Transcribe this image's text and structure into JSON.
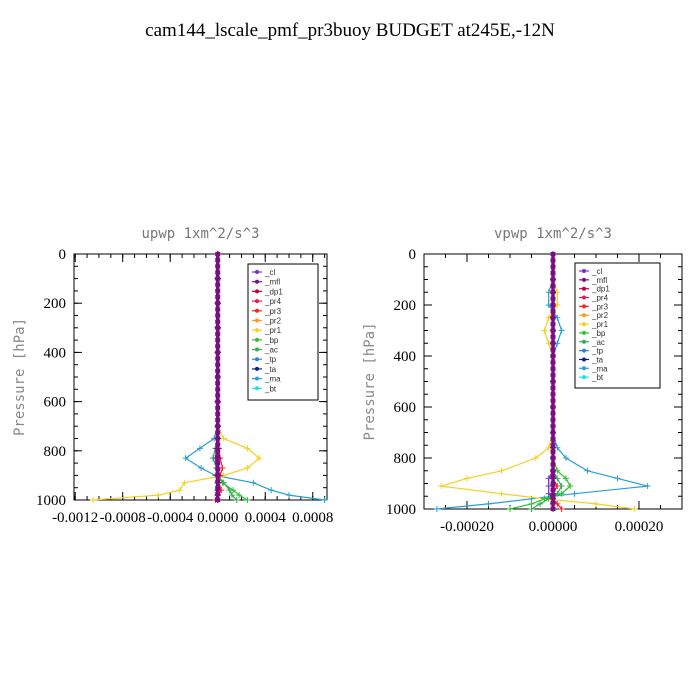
{
  "title": "cam144_lscale_pmf_pr3buoy  BUDGET at245E,-12N",
  "colors": {
    "_cl": "#7a2fd0",
    "_mfl": "#7a1080",
    "_dp1": "#c00040",
    "_pr4": "#e0204a",
    "_pr3": "#ff2020",
    "_pr2": "#ff9a20",
    "_pr1": "#f5d020",
    "_bp": "#30c030",
    "_ac": "#30b050",
    "_tp": "#3080e0",
    "_ta": "#102080",
    "_ma": "#2aa0d0",
    "_bt": "#20e0e0"
  },
  "chart_data": [
    {
      "type": "line",
      "title": "upwp  1xm^2/s^3",
      "ylabel": "Pressure [hPa]",
      "xlim": [
        -0.00121,
        0.00092
      ],
      "ylim": [
        1000,
        0
      ],
      "xticks": [
        -0.0012,
        -0.0008,
        -0.0004,
        0.0,
        0.0004,
        0.0008
      ],
      "xtick_labels": [
        "-0.0012",
        "-0.0008",
        "-0.0004",
        "0.0000",
        "0.0004",
        "0.0008"
      ],
      "yticks": [
        0,
        200,
        400,
        600,
        800,
        1000
      ],
      "ytick_labels": [
        "0",
        "200",
        "400",
        "600",
        "800",
        "1000"
      ],
      "legend": [
        "_cl",
        "_mfl",
        "_dp1",
        "_pr4",
        "_pr3",
        "_pr2",
        "_pr1",
        "_bp",
        "_ac",
        "_tp",
        "_ta",
        "_ma",
        "_bt"
      ],
      "legend_loc": "top-right",
      "pressure": [
        0,
        100,
        200,
        300,
        400,
        500,
        600,
        700,
        750,
        790,
        830,
        870,
        900,
        930,
        960,
        980,
        1000
      ],
      "series": [
        {
          "name": "_ma",
          "values": [
            0,
            0,
            0,
            0,
            0,
            0,
            0,
            0,
            -3e-05,
            -0.00015,
            -0.00027,
            -0.00014,
            -2e-05,
            0.0003,
            0.00045,
            0.0006,
            0.0009
          ]
        },
        {
          "name": "_pr1",
          "values": [
            0,
            0,
            0,
            0,
            0,
            0,
            0,
            0,
            5e-05,
            0.00025,
            0.00035,
            0.00025,
            5e-05,
            -0.00028,
            -0.00032,
            -0.0005,
            -0.00105
          ]
        },
        {
          "name": "_bp",
          "values": [
            0,
            0,
            0,
            0,
            0,
            0,
            0,
            0,
            0,
            0,
            0,
            0,
            0,
            4e-05,
            0.00013,
            0.00018,
            0.00025
          ]
        },
        {
          "name": "_ac",
          "values": [
            0,
            0,
            0,
            0,
            0,
            0,
            0,
            0,
            0,
            -2e-05,
            -4e-05,
            -1e-05,
            0,
            5e-05,
            0.0001,
            0.00012,
            0.00016
          ]
        },
        {
          "name": "_pr3",
          "values": [
            0,
            0,
            0,
            0,
            0,
            0,
            0,
            0,
            0,
            1e-05,
            2e-05,
            4e-05,
            2e-05,
            1e-05,
            3e-05,
            0,
            -2e-05
          ]
        },
        {
          "name": "_cl",
          "values": [
            0,
            0,
            0,
            0,
            0,
            0,
            0,
            0,
            0,
            -1e-05,
            -2e-05,
            -1e-05,
            -1e-05,
            0,
            0,
            0,
            0
          ]
        },
        {
          "name": "_dp1",
          "values": [
            0,
            0,
            0,
            0,
            0,
            0,
            0,
            0,
            0,
            0,
            1e-05,
            0,
            0,
            0,
            0,
            0,
            0
          ]
        },
        {
          "name": "_mfl",
          "values": [
            0,
            0,
            0,
            0,
            0,
            0,
            0,
            0,
            0,
            0,
            0,
            0,
            0,
            0,
            0,
            0,
            0
          ]
        }
      ]
    },
    {
      "type": "line",
      "title": "vpwp  1xm^2/s^3",
      "ylabel": "Pressure [hPa]",
      "xlim": [
        -0.0003,
        0.0003
      ],
      "ylim": [
        1000,
        0
      ],
      "xticks": [
        -0.0002,
        0.0,
        0.0002
      ],
      "xtick_labels": [
        "-0.00020",
        "0.00000",
        "0.00020"
      ],
      "yticks": [
        0,
        200,
        400,
        600,
        800,
        1000
      ],
      "ytick_labels": [
        "0",
        "200",
        "400",
        "600",
        "800",
        "1000"
      ],
      "legend": [
        "_cl",
        "_mfl",
        "_dp1",
        "_pr4",
        "_pr3",
        "_pr2",
        "_pr1",
        "_bp",
        "_ac",
        "_tp",
        "_ta",
        "_ma",
        "_bt"
      ],
      "legend_loc": "top-right",
      "pressure": [
        0,
        100,
        150,
        200,
        250,
        300,
        350,
        400,
        500,
        600,
        700,
        760,
        800,
        850,
        880,
        910,
        940,
        960,
        980,
        1000
      ],
      "series": [
        {
          "name": "_ma",
          "values": [
            0,
            0,
            -1e-05,
            -1e-05,
            1e-05,
            2e-05,
            1e-05,
            0,
            0,
            0,
            0,
            1e-05,
            3e-05,
            8e-05,
            0.00015,
            0.00022,
            5e-05,
            -5e-05,
            -0.00015,
            -0.00027
          ]
        },
        {
          "name": "_pr1",
          "values": [
            0,
            0,
            1e-05,
            1e-05,
            -1e-05,
            -2e-05,
            -1e-05,
            0,
            0,
            0,
            0,
            -1e-05,
            -4e-05,
            -0.00012,
            -0.0002,
            -0.00026,
            -0.00012,
            -2e-05,
            0.0001,
            0.00019
          ]
        },
        {
          "name": "_bp",
          "values": [
            0,
            0,
            0,
            0,
            0,
            0,
            0,
            0,
            0,
            0,
            0,
            0,
            0,
            1e-05,
            3e-05,
            4e-05,
            2e-05,
            -2e-05,
            -5e-05,
            -0.0001
          ]
        },
        {
          "name": "_ac",
          "values": [
            0,
            0,
            0,
            0,
            0,
            0,
            0,
            0,
            0,
            0,
            0,
            0,
            0,
            0,
            1e-05,
            2e-05,
            1e-05,
            -1e-05,
            -3e-05,
            -5e-05
          ]
        },
        {
          "name": "_cl",
          "values": [
            0,
            0,
            0,
            0,
            0,
            0,
            0,
            0,
            0,
            0,
            0,
            0,
            0,
            0,
            -1e-05,
            -1e-05,
            -1e-05,
            0,
            0,
            0
          ]
        },
        {
          "name": "_pr3",
          "values": [
            0,
            0,
            0,
            0,
            0,
            0,
            0,
            0,
            0,
            0,
            0,
            0,
            0,
            0,
            0,
            1e-05,
            0,
            0,
            1e-05,
            2e-05
          ]
        },
        {
          "name": "_mfl",
          "values": [
            0,
            0,
            0,
            0,
            0,
            0,
            0,
            0,
            0,
            0,
            0,
            0,
            0,
            0,
            0,
            0,
            0,
            0,
            0,
            0
          ]
        }
      ]
    }
  ]
}
